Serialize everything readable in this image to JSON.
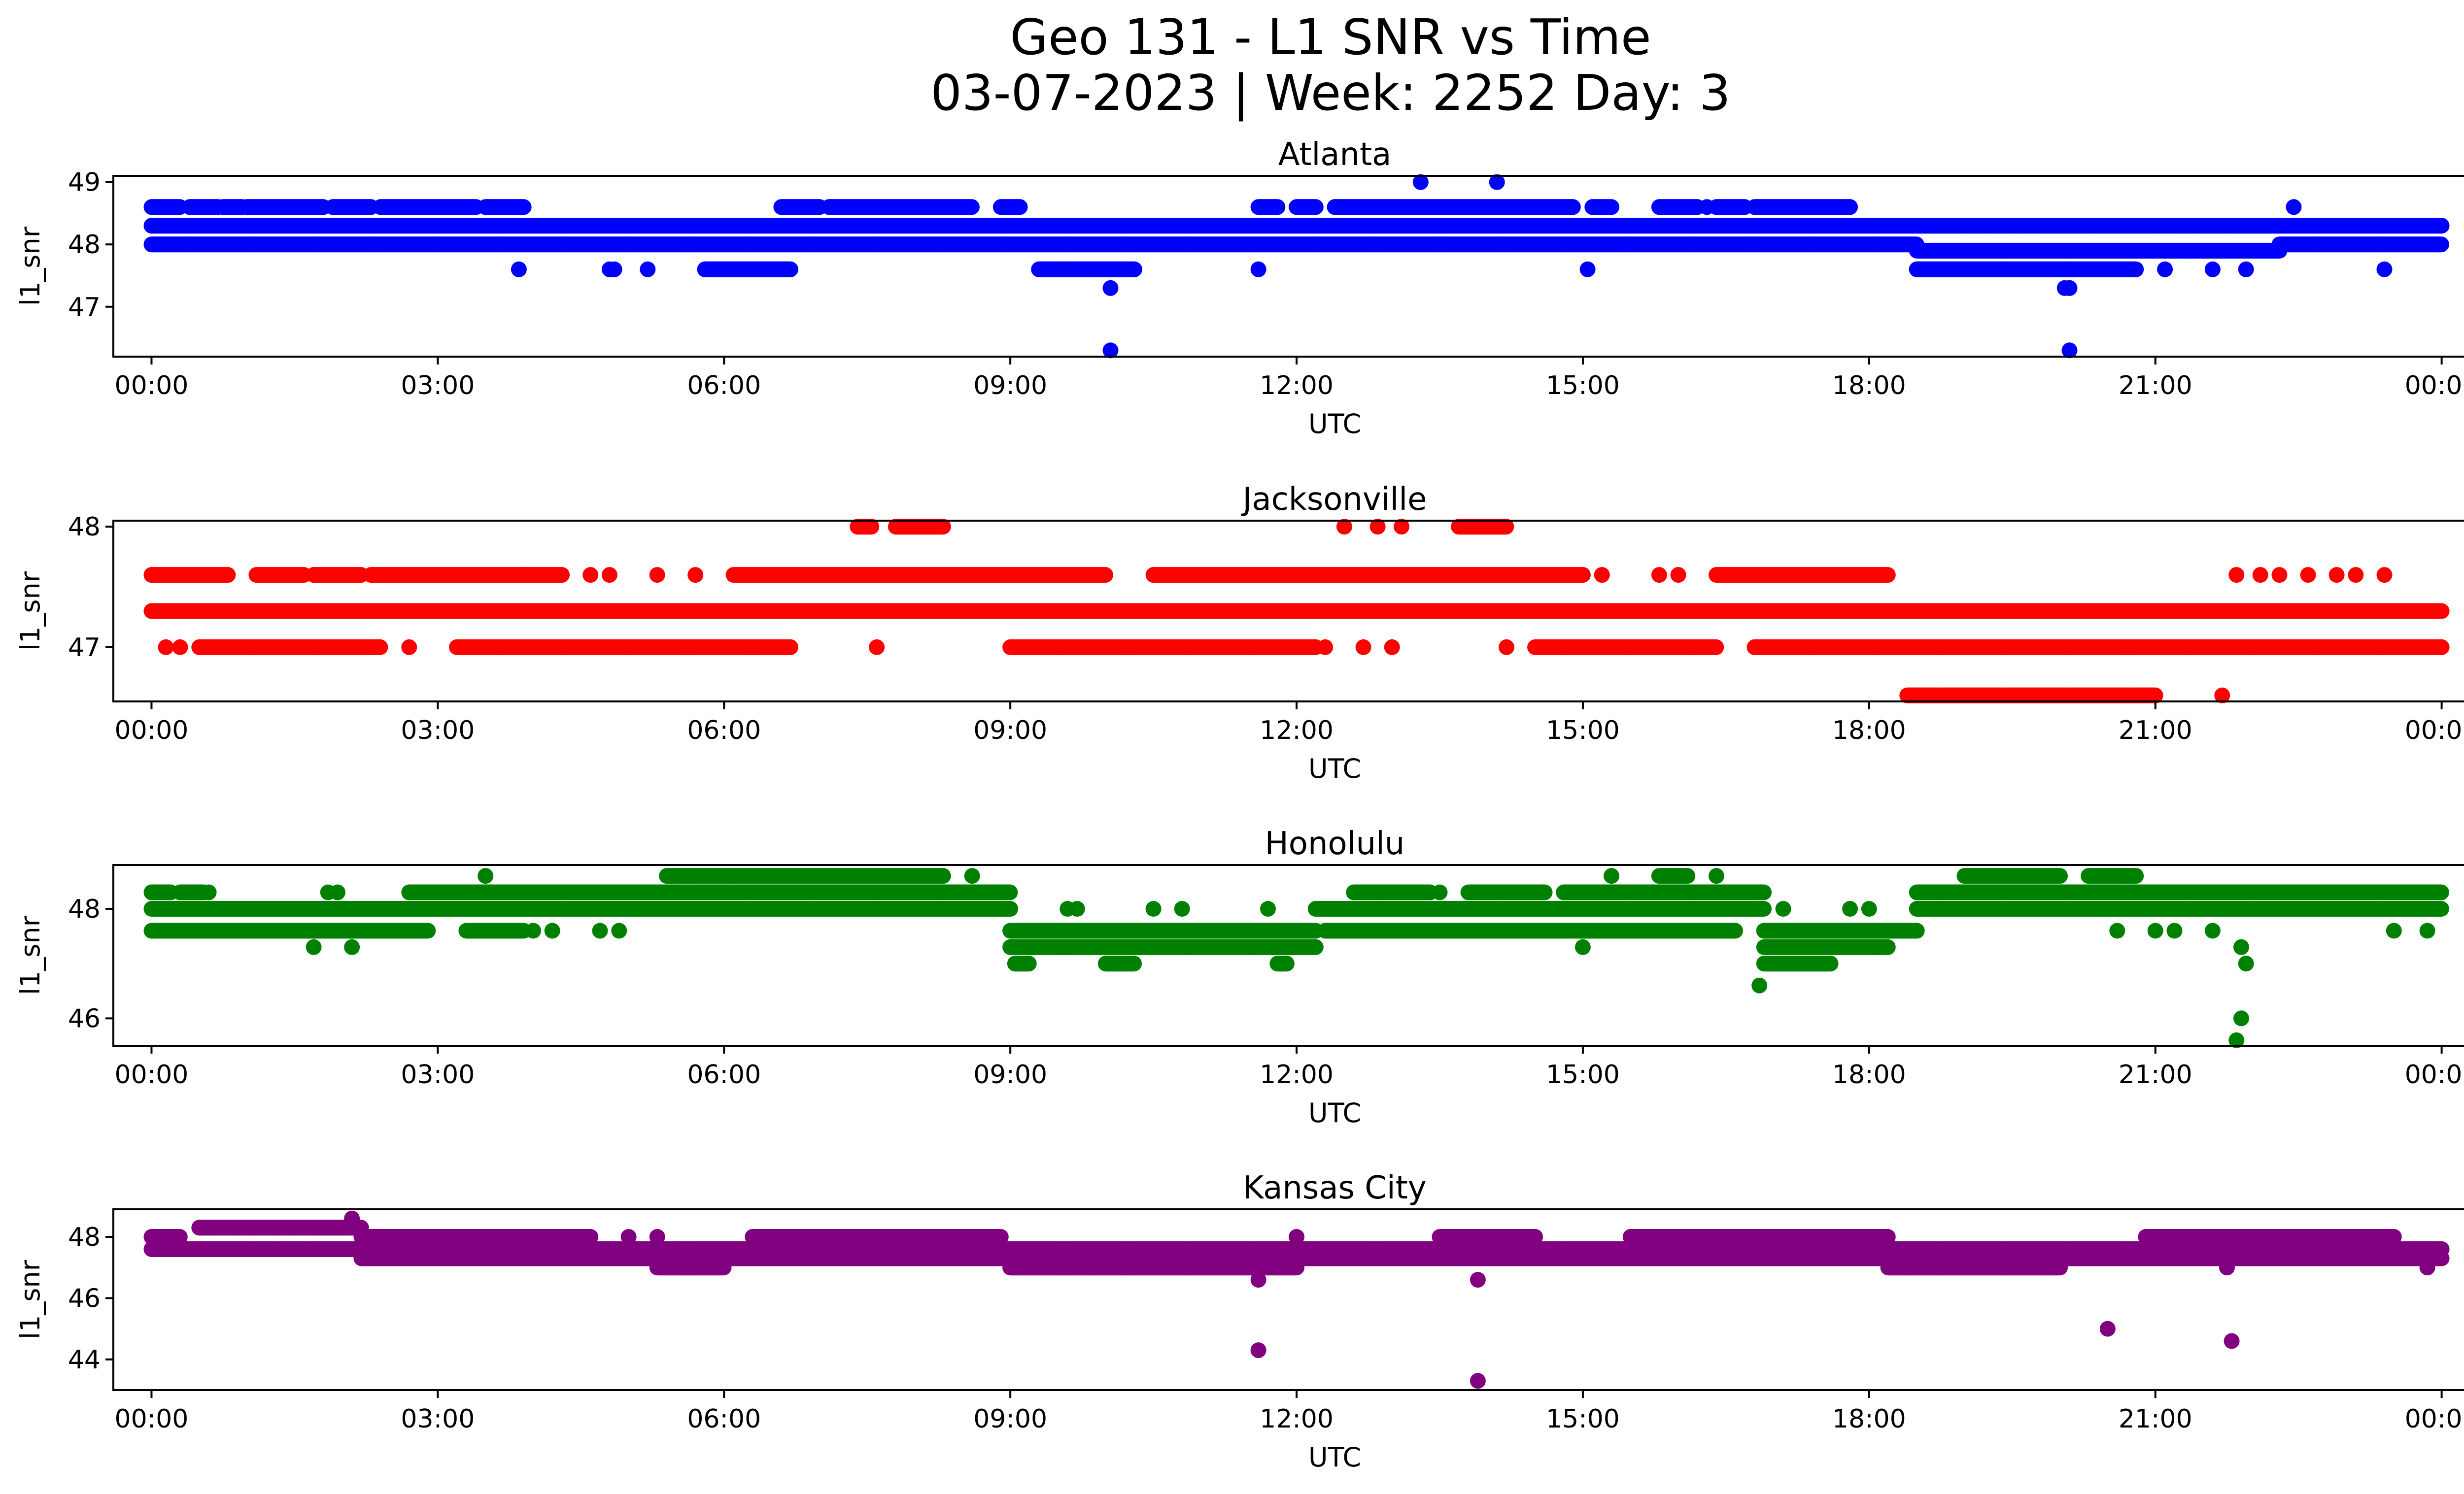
{
  "figure": {
    "title_line1": "Geo 131 - L1 SNR vs Time",
    "title_line2": "03-07-2023 | Week: 2252 Day: 3"
  },
  "chart_data": [
    {
      "type": "scatter",
      "title": "Atlanta",
      "xlabel": "UTC",
      "ylabel": "l1_snr",
      "color": "#0000ff",
      "xlim": [
        -0.4,
        25.2
      ],
      "ylim": [
        46.2,
        49.1
      ],
      "x_ticks": [
        "00:00",
        "03:00",
        "06:00",
        "09:00",
        "12:00",
        "15:00",
        "18:00",
        "21:00",
        "00:00"
      ],
      "y_ticks": [
        47,
        48,
        49
      ],
      "bands": [
        {
          "y": 48.3,
          "from": 0,
          "to": 24
        },
        {
          "y": 48.0,
          "from": 0,
          "to": 18.5
        },
        {
          "y": 48.0,
          "from": 22.3,
          "to": 24
        },
        {
          "y": 47.9,
          "from": 18.5,
          "to": 22.3
        }
      ],
      "clusters": [
        {
          "y": 48.6,
          "ranges": [
            [
              0.0,
              0.3
            ],
            [
              0.4,
              0.7
            ],
            [
              0.75,
              0.95
            ],
            [
              1.0,
              1.8
            ],
            [
              1.9,
              2.3
            ],
            [
              2.4,
              3.4
            ],
            [
              3.5,
              3.9
            ],
            [
              6.6,
              7.0
            ],
            [
              7.1,
              7.9
            ],
            [
              7.9,
              8.6
            ],
            [
              8.9,
              9.1
            ],
            [
              11.6,
              11.8
            ],
            [
              12.0,
              12.2
            ],
            [
              12.4,
              14.9
            ],
            [
              15.1,
              15.3
            ],
            [
              15.8,
              16.2
            ],
            [
              16.4,
              16.7
            ],
            [
              16.8,
              17.8
            ]
          ]
        },
        {
          "y": 47.6,
          "ranges": [
            [
              5.8,
              6.7
            ],
            [
              9.3,
              10.3
            ],
            [
              18.5,
              20.8
            ]
          ]
        }
      ],
      "points": [
        {
          "x": 3.85,
          "y": 47.6
        },
        {
          "x": 4.8,
          "y": 47.6
        },
        {
          "x": 4.85,
          "y": 47.6
        },
        {
          "x": 5.2,
          "y": 47.6
        },
        {
          "x": 6.65,
          "y": 47.6
        },
        {
          "x": 10.05,
          "y": 47.3
        },
        {
          "x": 10.05,
          "y": 46.3
        },
        {
          "x": 11.6,
          "y": 47.6
        },
        {
          "x": 13.3,
          "y": 49.0
        },
        {
          "x": 14.1,
          "y": 49.0
        },
        {
          "x": 15.05,
          "y": 47.6
        },
        {
          "x": 16.3,
          "y": 48.6
        },
        {
          "x": 18.85,
          "y": 48.3
        },
        {
          "x": 19.8,
          "y": 48.3
        },
        {
          "x": 20.05,
          "y": 47.3
        },
        {
          "x": 20.1,
          "y": 47.3
        },
        {
          "x": 20.1,
          "y": 46.3
        },
        {
          "x": 20.6,
          "y": 48.3
        },
        {
          "x": 20.8,
          "y": 48.3
        },
        {
          "x": 21.1,
          "y": 47.6
        },
        {
          "x": 21.6,
          "y": 47.6
        },
        {
          "x": 21.95,
          "y": 47.6
        },
        {
          "x": 22.45,
          "y": 48.6
        },
        {
          "x": 23.4,
          "y": 47.6
        }
      ]
    },
    {
      "type": "scatter",
      "title": "Jacksonville",
      "xlabel": "UTC",
      "ylabel": "l1_snr",
      "color": "#ff0000",
      "xlim": [
        -0.4,
        25.2
      ],
      "ylim": [
        46.55,
        48.05
      ],
      "x_ticks": [
        "00:00",
        "03:00",
        "06:00",
        "09:00",
        "12:00",
        "15:00",
        "18:00",
        "21:00",
        "00:00"
      ],
      "y_ticks": [
        47,
        48
      ],
      "bands": [
        {
          "y": 47.3,
          "from": 0,
          "to": 24
        }
      ],
      "clusters": [
        {
          "y": 47.6,
          "ranges": [
            [
              0.0,
              0.8
            ],
            [
              1.1,
              1.6
            ],
            [
              1.7,
              2.2
            ],
            [
              2.3,
              3.9
            ],
            [
              3.9,
              4.3
            ],
            [
              6.1,
              10.0
            ],
            [
              10.5,
              14.6
            ],
            [
              14.6,
              15.0
            ],
            [
              16.4,
              17.7
            ],
            [
              17.7,
              18.2
            ]
          ]
        },
        {
          "y": 47.0,
          "ranges": [
            [
              0.5,
              2.4
            ],
            [
              3.2,
              6.7
            ],
            [
              9.0,
              12.2
            ],
            [
              14.5,
              16.4
            ],
            [
              16.8,
              24.0
            ]
          ]
        },
        {
          "y": 46.6,
          "ranges": [
            [
              18.4,
              21.0
            ]
          ]
        },
        {
          "y": 48.0,
          "ranges": [
            [
              7.4,
              7.55
            ],
            [
              7.8,
              8.3
            ],
            [
              13.7,
              14.2
            ]
          ]
        }
      ],
      "points": [
        {
          "x": 0.15,
          "y": 47.0
        },
        {
          "x": 0.3,
          "y": 47.0
        },
        {
          "x": 2.7,
          "y": 47.0
        },
        {
          "x": 4.6,
          "y": 47.6
        },
        {
          "x": 4.8,
          "y": 47.6
        },
        {
          "x": 5.3,
          "y": 47.6
        },
        {
          "x": 5.7,
          "y": 47.6
        },
        {
          "x": 7.6,
          "y": 47.0
        },
        {
          "x": 12.5,
          "y": 48.0
        },
        {
          "x": 12.85,
          "y": 48.0
        },
        {
          "x": 13.1,
          "y": 48.0
        },
        {
          "x": 12.3,
          "y": 47.0
        },
        {
          "x": 12.7,
          "y": 47.0
        },
        {
          "x": 13.0,
          "y": 47.0
        },
        {
          "x": 14.2,
          "y": 47.0
        },
        {
          "x": 15.2,
          "y": 47.6
        },
        {
          "x": 15.8,
          "y": 47.6
        },
        {
          "x": 16.0,
          "y": 47.6
        },
        {
          "x": 21.7,
          "y": 46.6
        },
        {
          "x": 21.85,
          "y": 47.6
        },
        {
          "x": 22.1,
          "y": 47.6
        },
        {
          "x": 22.3,
          "y": 47.6
        },
        {
          "x": 22.6,
          "y": 47.6
        },
        {
          "x": 22.9,
          "y": 47.6
        },
        {
          "x": 23.1,
          "y": 47.6
        },
        {
          "x": 23.4,
          "y": 47.6
        }
      ]
    },
    {
      "type": "scatter",
      "title": "Honolulu",
      "xlabel": "UTC",
      "ylabel": "l1_snr",
      "color": "#008000",
      "xlim": [
        -0.4,
        25.2
      ],
      "ylim": [
        45.5,
        48.8
      ],
      "x_ticks": [
        "00:00",
        "03:00",
        "06:00",
        "09:00",
        "12:00",
        "15:00",
        "18:00",
        "21:00",
        "00:00"
      ],
      "y_ticks": [
        46,
        48
      ],
      "bands": [
        {
          "y": 48.0,
          "from": 0,
          "to": 9.0
        },
        {
          "y": 48.0,
          "from": 18.5,
          "to": 24
        },
        {
          "y": 48.3,
          "from": 2.7,
          "to": 9.0
        },
        {
          "y": 48.3,
          "from": 18.5,
          "to": 24
        },
        {
          "y": 47.6,
          "from": 0,
          "to": 2.9
        },
        {
          "y": 47.6,
          "from": 9.0,
          "to": 12.2
        },
        {
          "y": 47.3,
          "from": 9.0,
          "to": 12.2
        },
        {
          "y": 47.6,
          "from": 16.9,
          "to": 18.2
        },
        {
          "y": 47.3,
          "from": 16.9,
          "to": 18.2
        }
      ],
      "clusters": [
        {
          "y": 48.3,
          "ranges": [
            [
              0.0,
              0.2
            ],
            [
              12.6,
              13.4
            ],
            [
              13.8,
              14.6
            ],
            [
              14.8,
              16.9
            ],
            [
              0.3,
              0.55
            ]
          ]
        },
        {
          "y": 48.0,
          "ranges": [
            [
              12.2,
              16.9
            ]
          ]
        },
        {
          "y": 47.6,
          "ranges": [
            [
              3.3,
              3.9
            ],
            [
              12.3,
              16.6
            ],
            [
              16.9,
              18.5
            ]
          ]
        },
        {
          "y": 48.6,
          "ranges": [
            [
              5.4,
              8.3
            ],
            [
              19.0,
              20.0
            ],
            [
              20.3,
              20.8
            ],
            [
              15.8,
              16.1
            ]
          ]
        },
        {
          "y": 47.0,
          "ranges": [
            [
              9.05,
              9.2
            ],
            [
              10.0,
              10.3
            ],
            [
              11.8,
              11.9
            ],
            [
              16.9,
              17.6
            ]
          ]
        }
      ],
      "points": [
        {
          "x": 0.6,
          "y": 48.3
        },
        {
          "x": 1.7,
          "y": 47.3
        },
        {
          "x": 1.85,
          "y": 48.3
        },
        {
          "x": 1.95,
          "y": 48.3
        },
        {
          "x": 2.1,
          "y": 47.3
        },
        {
          "x": 3.5,
          "y": 48.6
        },
        {
          "x": 4.0,
          "y": 47.6
        },
        {
          "x": 4.2,
          "y": 47.6
        },
        {
          "x": 4.7,
          "y": 47.6
        },
        {
          "x": 4.9,
          "y": 47.6
        },
        {
          "x": 6.2,
          "y": 48.0
        },
        {
          "x": 6.8,
          "y": 48.0
        },
        {
          "x": 7.0,
          "y": 48.0
        },
        {
          "x": 8.6,
          "y": 48.6
        },
        {
          "x": 8.8,
          "y": 48.0
        },
        {
          "x": 9.6,
          "y": 48.0
        },
        {
          "x": 9.7,
          "y": 48.0
        },
        {
          "x": 10.5,
          "y": 48.0
        },
        {
          "x": 10.8,
          "y": 48.0
        },
        {
          "x": 11.7,
          "y": 48.0
        },
        {
          "x": 12.5,
          "y": 47.6
        },
        {
          "x": 13.5,
          "y": 48.3
        },
        {
          "x": 15.0,
          "y": 47.3
        },
        {
          "x": 15.3,
          "y": 48.6
        },
        {
          "x": 16.4,
          "y": 48.6
        },
        {
          "x": 16.85,
          "y": 46.6
        },
        {
          "x": 17.1,
          "y": 48.0
        },
        {
          "x": 17.8,
          "y": 48.0
        },
        {
          "x": 18.2,
          "y": 47.6
        },
        {
          "x": 18.0,
          "y": 48.0
        },
        {
          "x": 20.6,
          "y": 47.6
        },
        {
          "x": 21.0,
          "y": 47.6
        },
        {
          "x": 21.2,
          "y": 47.6
        },
        {
          "x": 21.6,
          "y": 47.6
        },
        {
          "x": 21.9,
          "y": 47.3
        },
        {
          "x": 21.95,
          "y": 47.0
        },
        {
          "x": 21.9,
          "y": 46.0
        },
        {
          "x": 21.85,
          "y": 45.6
        },
        {
          "x": 23.5,
          "y": 47.6
        },
        {
          "x": 23.85,
          "y": 47.6
        }
      ]
    },
    {
      "type": "scatter",
      "title": "Kansas City",
      "xlabel": "UTC",
      "ylabel": "l1_snr",
      "color": "#800080",
      "xlim": [
        -0.4,
        25.2
      ],
      "ylim": [
        43.0,
        48.9
      ],
      "x_ticks": [
        "00:00",
        "03:00",
        "06:00",
        "09:00",
        "12:00",
        "15:00",
        "18:00",
        "21:00",
        "00:00"
      ],
      "y_ticks": [
        44,
        46,
        48
      ],
      "bands": [
        {
          "y": 47.6,
          "from": 0,
          "to": 24
        },
        {
          "y": 47.3,
          "from": 2.2,
          "to": 24
        }
      ],
      "clusters": [
        {
          "y": 48.0,
          "ranges": [
            [
              0.0,
              0.3
            ],
            [
              2.2,
              4.6
            ],
            [
              6.3,
              8.9
            ],
            [
              13.5,
              14.5
            ],
            [
              15.5,
              18.2
            ],
            [
              20.9,
              23.5
            ]
          ]
        },
        {
          "y": 48.3,
          "ranges": [
            [
              0.5,
              2.2
            ]
          ]
        },
        {
          "y": 47.0,
          "ranges": [
            [
              5.3,
              6.0
            ],
            [
              9.0,
              12.0
            ],
            [
              18.2,
              20.0
            ]
          ]
        }
      ],
      "points": [
        {
          "x": 2.1,
          "y": 48.6
        },
        {
          "x": 11.6,
          "y": 46.6
        },
        {
          "x": 11.6,
          "y": 44.3
        },
        {
          "x": 12.0,
          "y": 48.0
        },
        {
          "x": 13.9,
          "y": 46.6
        },
        {
          "x": 13.9,
          "y": 43.3
        },
        {
          "x": 20.5,
          "y": 45.0
        },
        {
          "x": 21.8,
          "y": 44.6
        },
        {
          "x": 21.75,
          "y": 47.0
        },
        {
          "x": 23.85,
          "y": 47.0
        },
        {
          "x": 5.0,
          "y": 48.0
        },
        {
          "x": 5.3,
          "y": 48.0
        }
      ]
    }
  ]
}
